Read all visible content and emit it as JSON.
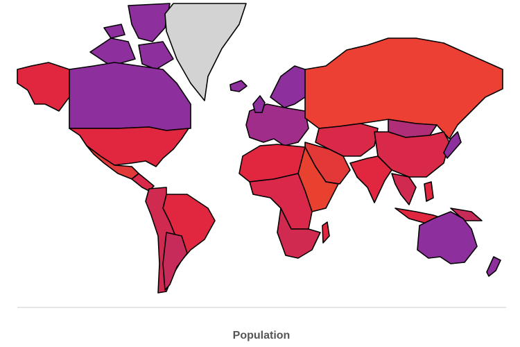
{
  "title": "Population"
}
